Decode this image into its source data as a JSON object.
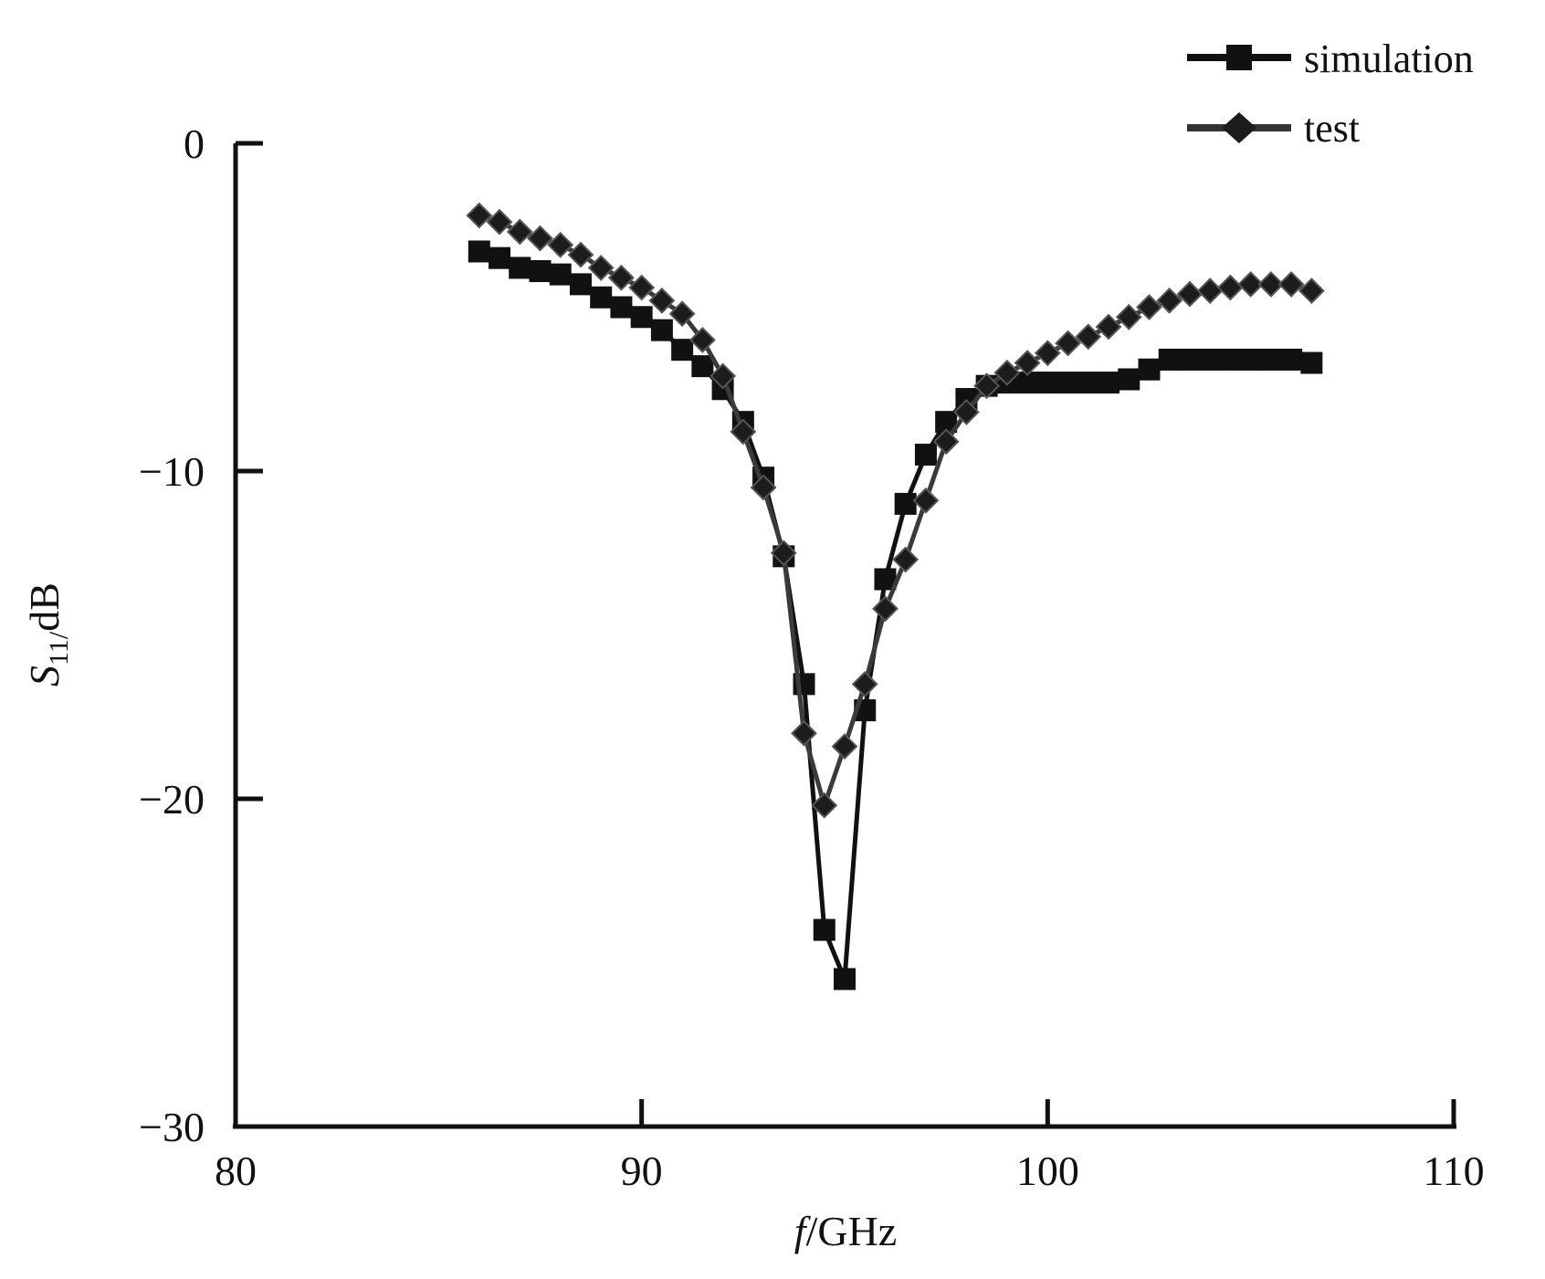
{
  "chart_data": {
    "type": "line",
    "title": "",
    "xlabel": {
      "italic": "f",
      "rest": "/GHz"
    },
    "ylabel": {
      "symbol": "S",
      "subscript": "11/",
      "unit": "dB"
    },
    "xlim": [
      80,
      110
    ],
    "ylim": [
      -30,
      0
    ],
    "xticks": [
      80,
      90,
      100,
      110
    ],
    "yticks": [
      0,
      -10,
      -20,
      -30
    ],
    "xtick_labels": [
      "80",
      "90",
      "100",
      "110"
    ],
    "ytick_labels": [
      "0",
      "−10",
      "−20",
      "−30"
    ],
    "grid": false,
    "legend": "top-right",
    "series": [
      {
        "name": "simulation",
        "marker": "square",
        "color": "#111111",
        "x": [
          86.0,
          86.5,
          87.0,
          87.5,
          88.0,
          88.5,
          89.0,
          89.5,
          90.0,
          90.5,
          91.0,
          91.5,
          92.0,
          92.5,
          93.0,
          93.5,
          94.0,
          94.5,
          95.0,
          95.5,
          96.0,
          96.5,
          97.0,
          97.5,
          98.0,
          98.5,
          99.0,
          99.5,
          100.0,
          100.5,
          101.0,
          101.5,
          102.0,
          102.5,
          103.0,
          103.5,
          104.0,
          104.5,
          105.0,
          105.5,
          106.0,
          106.5
        ],
        "y": [
          -3.3,
          -3.5,
          -3.8,
          -3.9,
          -4.0,
          -4.3,
          -4.7,
          -5.0,
          -5.3,
          -5.7,
          -6.3,
          -6.8,
          -7.5,
          -8.5,
          -10.2,
          -12.6,
          -16.5,
          -24.0,
          -25.5,
          -17.3,
          -13.3,
          -11.0,
          -9.5,
          -8.5,
          -7.8,
          -7.4,
          -7.3,
          -7.3,
          -7.3,
          -7.3,
          -7.3,
          -7.3,
          -7.2,
          -6.9,
          -6.6,
          -6.6,
          -6.6,
          -6.6,
          -6.6,
          -6.6,
          -6.6,
          -6.7
        ]
      },
      {
        "name": "test",
        "marker": "diamond",
        "color": "#1c1c1c",
        "x": [
          86.0,
          86.5,
          87.0,
          87.5,
          88.0,
          88.5,
          89.0,
          89.5,
          90.0,
          90.5,
          91.0,
          91.5,
          92.0,
          92.5,
          93.0,
          93.5,
          94.0,
          94.5,
          95.0,
          95.5,
          96.0,
          96.5,
          97.0,
          97.5,
          98.0,
          98.5,
          99.0,
          99.5,
          100.0,
          100.5,
          101.0,
          101.5,
          102.0,
          102.5,
          103.0,
          103.5,
          104.0,
          104.5,
          105.0,
          105.5,
          106.0,
          106.5
        ],
        "y": [
          -2.2,
          -2.4,
          -2.7,
          -2.9,
          -3.1,
          -3.4,
          -3.8,
          -4.1,
          -4.4,
          -4.8,
          -5.2,
          -6.0,
          -7.1,
          -8.8,
          -10.5,
          -12.5,
          -18.0,
          -20.2,
          -18.4,
          -16.5,
          -14.2,
          -12.7,
          -10.9,
          -9.1,
          -8.2,
          -7.4,
          -7.0,
          -6.7,
          -6.4,
          -6.1,
          -5.9,
          -5.6,
          -5.3,
          -5.0,
          -4.8,
          -4.6,
          -4.5,
          -4.4,
          -4.3,
          -4.3,
          -4.3,
          -4.5
        ]
      }
    ]
  }
}
